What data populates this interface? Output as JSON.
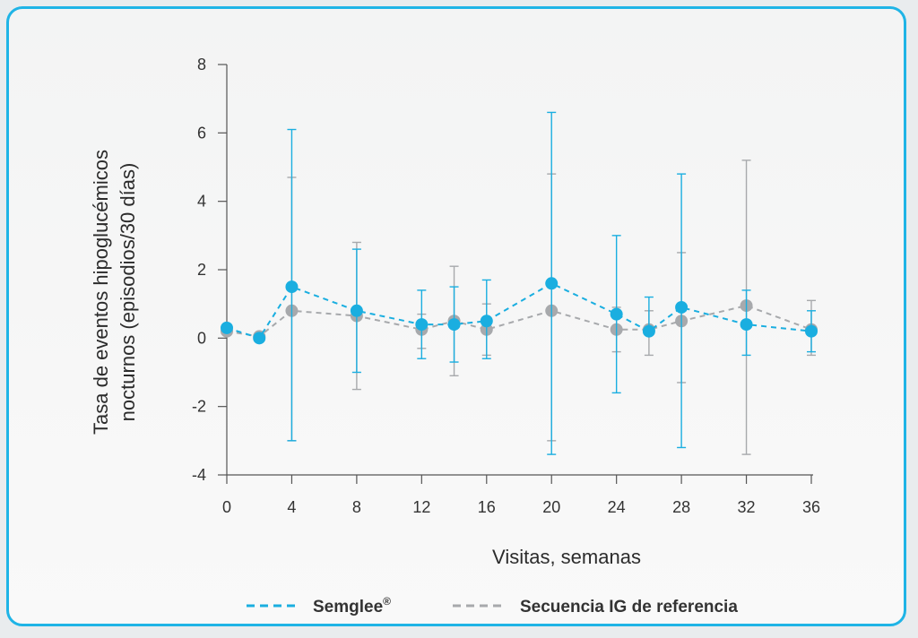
{
  "chart_data": {
    "type": "line",
    "ylabel": [
      "Tasa de eventos hipoglucémicos",
      "nocturnos (episodios/30 días)"
    ],
    "xlabel": "Visitas, semanas",
    "ylim": [
      -4,
      8
    ],
    "yticks": [
      -4,
      -2,
      0,
      2,
      4,
      6,
      8
    ],
    "xlim": [
      0,
      36
    ],
    "xticks": [
      0,
      4,
      8,
      12,
      16,
      20,
      24,
      28,
      32,
      36
    ],
    "grid": false,
    "legend_position": "bottom",
    "series": [
      {
        "name": "Semglee",
        "name_suffix": "®",
        "color": "#1aaee0",
        "style": "dashed",
        "x": [
          0,
          2,
          4,
          8,
          12,
          14,
          16,
          20,
          24,
          26,
          28,
          32,
          36
        ],
        "y": [
          0.3,
          0.0,
          1.5,
          0.8,
          0.4,
          0.4,
          0.5,
          1.6,
          0.7,
          0.2,
          0.9,
          0.4,
          0.2
        ],
        "err_low": [
          null,
          null,
          -3.0,
          -1.0,
          -0.6,
          -0.7,
          -0.6,
          -3.4,
          -1.6,
          null,
          -3.2,
          -0.5,
          -0.4
        ],
        "err_high": [
          null,
          null,
          6.1,
          2.6,
          1.4,
          1.5,
          1.7,
          6.6,
          3.0,
          1.2,
          4.8,
          1.4,
          0.8
        ]
      },
      {
        "name": "Secuencia IG de referencia",
        "color": "#a7a9ac",
        "style": "dashed",
        "x": [
          0,
          2,
          4,
          8,
          12,
          14,
          16,
          20,
          24,
          26,
          28,
          32,
          36
        ],
        "y": [
          0.2,
          0.05,
          0.8,
          0.65,
          0.25,
          0.5,
          0.25,
          0.8,
          0.25,
          0.25,
          0.5,
          0.95,
          0.25
        ],
        "err_low": [
          null,
          null,
          -3.0,
          -1.5,
          -0.3,
          -1.1,
          -0.5,
          -3.0,
          -0.4,
          -0.5,
          -1.3,
          -3.4,
          -0.5
        ],
        "err_high": [
          null,
          null,
          4.7,
          2.8,
          0.7,
          2.1,
          1.0,
          4.8,
          0.9,
          0.8,
          2.5,
          5.2,
          1.1
        ]
      }
    ]
  }
}
